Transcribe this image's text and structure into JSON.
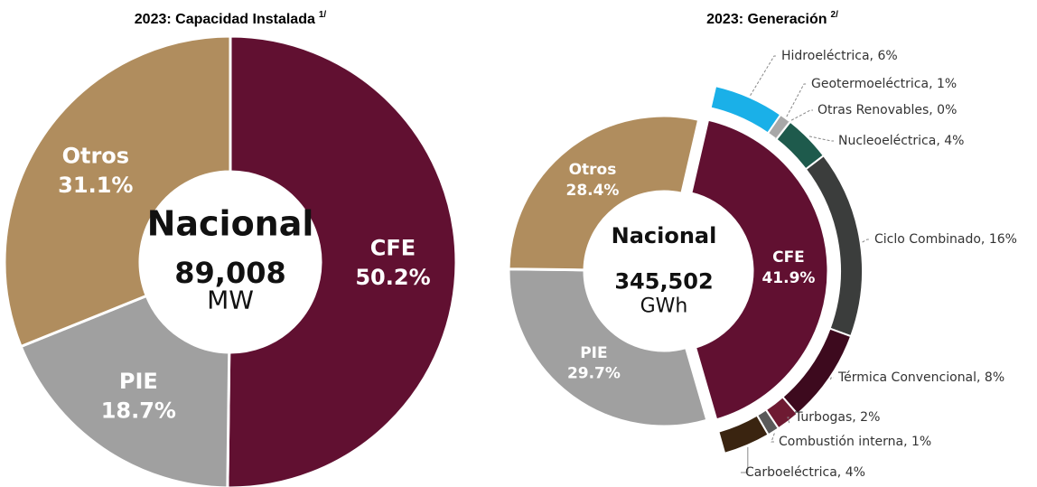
{
  "chart_data": [
    {
      "type": "donut",
      "title": "2023: Capacidad Instalada",
      "title_note": "1/",
      "center_title": "Nacional",
      "center_value": "89,008",
      "center_unit": "MW",
      "categories": [
        "CFE",
        "PIE",
        "Otros"
      ],
      "values": [
        50.2,
        18.7,
        31.1
      ],
      "value_labels": [
        "50.2%",
        "18.7%",
        "31.1%"
      ],
      "colors": [
        "#611031",
        "#a0a0a0",
        "#b08d5e"
      ]
    },
    {
      "type": "donut",
      "title": "2023: Generación",
      "title_note": "2/",
      "center_title": "Nacional",
      "center_value": "345,502",
      "center_unit": "GWh",
      "categories": [
        "CFE",
        "PIE",
        "Otros"
      ],
      "values": [
        41.9,
        29.7,
        28.4
      ],
      "value_labels": [
        "41.9%",
        "29.7%",
        "28.4%"
      ],
      "colors": [
        "#611031",
        "#a0a0a0",
        "#b08d5e"
      ],
      "breakdown": {
        "labels": [
          "Hidroeléctrica, 6%",
          "Geotermoeléctrica, 1%",
          "Otras Renovables, 0%",
          "Nucleoeléctrica, 4%",
          "Ciclo Combinado, 16%",
          "Térmica Convencional, 8%",
          "Turbogas, 2%",
          "Combustión interna, 1%",
          "Carboeléctrica, 4%"
        ],
        "values": [
          6,
          1,
          0,
          4,
          16,
          8,
          2,
          1,
          4
        ],
        "colors": [
          "#1ab0e8",
          "#a8a8a8",
          "#cfcfcf",
          "#1e5a4c",
          "#3b3d3c",
          "#3d0a1e",
          "#6e1a32",
          "#5a5a5a",
          "#3a2410"
        ]
      }
    }
  ]
}
